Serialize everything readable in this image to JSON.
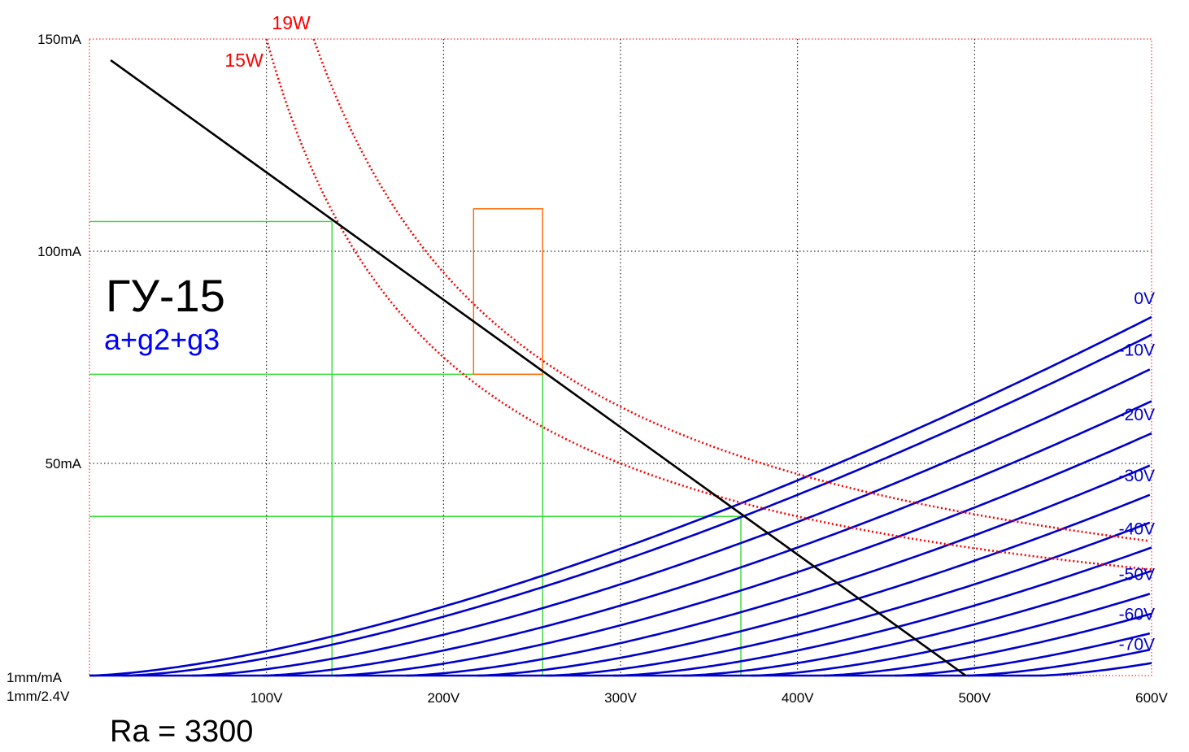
{
  "chart_data": {
    "type": "line",
    "title": "ГУ-15",
    "subtitle": "a+g2+g3",
    "load_label": "Ra = 3300",
    "x_scale_label": "1mm/2.4V",
    "y_scale_label": "1mm/mA",
    "xlim": [
      0,
      600
    ],
    "ylim": [
      0,
      150
    ],
    "x_ticks": [
      {
        "value": 100,
        "label": "100V"
      },
      {
        "value": 200,
        "label": "200V"
      },
      {
        "value": 300,
        "label": "300V"
      },
      {
        "value": 400,
        "label": "400V"
      },
      {
        "value": 500,
        "label": "500V"
      },
      {
        "value": 600,
        "label": "600V"
      }
    ],
    "y_ticks": [
      {
        "value": 50,
        "label": "50mA"
      },
      {
        "value": 100,
        "label": "100mA"
      },
      {
        "value": 150,
        "label": "150mA"
      }
    ],
    "colors": {
      "grid_inner": "#000000",
      "grid_border": "#ff0000",
      "characteristics": "#0000cc",
      "power_limits": "#ff0000",
      "load_line": "#000000",
      "operating_lines": "#33dd33",
      "highlight_box": "#ff6600",
      "title": "#000000",
      "subtitle": "#0000ff"
    },
    "characteristic_model": {
      "exponent": 1.5,
      "k": 0.00575,
      "grid_step_v": 5
    },
    "grid_curves": [
      {
        "ug": 0,
        "offset": 0
      },
      {
        "ug": -5,
        "offset": 20
      },
      {
        "ug": -10,
        "offset": 59
      },
      {
        "ug": -15,
        "offset": 98
      },
      {
        "ug": -20,
        "offset": 138
      },
      {
        "ug": -25,
        "offset": 179
      },
      {
        "ug": -30,
        "offset": 219
      },
      {
        "ug": -35,
        "offset": 259
      },
      {
        "ug": -40,
        "offset": 298
      },
      {
        "ug": -45,
        "offset": 336
      },
      {
        "ug": -50,
        "offset": 375
      },
      {
        "ug": -55,
        "offset": 414
      },
      {
        "ug": -60,
        "offset": 455
      },
      {
        "ug": -65,
        "offset": 495
      },
      {
        "ug": -70,
        "offset": 536
      }
    ],
    "curve_labels": [
      {
        "text": "0V",
        "ug": 0
      },
      {
        "text": "-10V",
        "ug": -10
      },
      {
        "text": "-20V",
        "ug": -20
      },
      {
        "text": "-30V",
        "ug": -30
      },
      {
        "text": "-40V",
        "ug": -40
      },
      {
        "text": "-50V",
        "ug": -50
      },
      {
        "text": "-60V",
        "ug": -60
      },
      {
        "text": "-70V",
        "ug": -70
      }
    ],
    "power_curves": [
      {
        "label": "15W",
        "watts": 15
      },
      {
        "label": "19W",
        "watts": 19
      }
    ],
    "load_line": {
      "from": [
        12,
        145
      ],
      "to": [
        495,
        0
      ]
    },
    "operating_points": [
      {
        "va": 137,
        "ia": 107
      },
      {
        "va": 256,
        "ia": 71
      },
      {
        "va": 368,
        "ia": 37.5
      }
    ],
    "highlight_box": {
      "va": [
        217,
        256
      ],
      "ia": [
        71,
        110
      ]
    }
  }
}
